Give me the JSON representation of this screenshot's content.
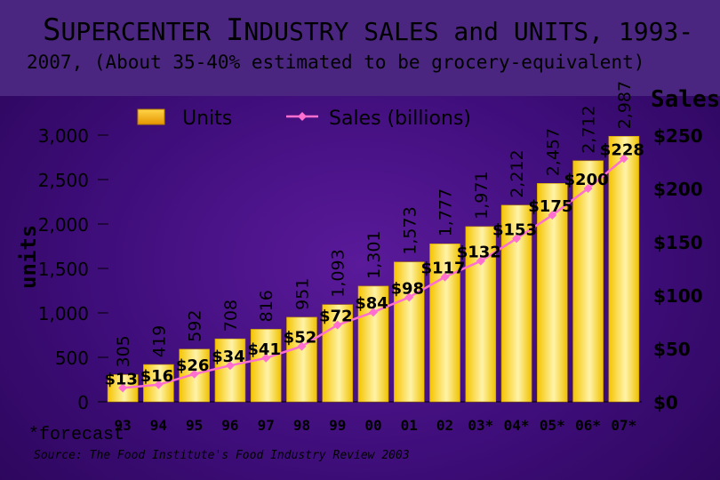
{
  "title": {
    "line1_first_initial": "S",
    "line1_first_rest": "UPERCENTER",
    "line1_second_initial": "I",
    "line1_second_rest": "NDUSTRY",
    "line1_suffix": "SALES and UNITS, 1993-",
    "line2": "2007, (About 35-40% estimated to be grocery-equivalent)"
  },
  "footnote": "*forecast",
  "source": "Source: The Food Institute's Food Industry Review 2003",
  "colors": {
    "bar": "#f5c400",
    "bar_light": "#fff3a8",
    "line": "#ff6fcf",
    "text": "#000000"
  },
  "chart_data": {
    "type": "bar+line",
    "categories": [
      "93",
      "94",
      "95",
      "96",
      "97",
      "98",
      "99",
      "00",
      "01",
      "02",
      "03*",
      "04*",
      "05*",
      "06*",
      "07*"
    ],
    "series": [
      {
        "name": "Units",
        "type": "bar",
        "axis": "left",
        "values": [
          305,
          419,
          592,
          708,
          816,
          951,
          1093,
          1301,
          1573,
          1777,
          1971,
          2212,
          2457,
          2712,
          2987
        ],
        "labels": [
          "305",
          "419",
          "592",
          "708",
          "816",
          "951",
          "1,093",
          "1,301",
          "1,573",
          "1,777",
          "1,971",
          "2,212",
          "2,457",
          "2,712",
          "2,987"
        ]
      },
      {
        "name": "Sales (billions)",
        "type": "line",
        "axis": "right",
        "values": [
          13,
          16,
          26,
          34,
          41,
          52,
          72,
          84,
          98,
          117,
          132,
          153,
          175,
          200,
          228
        ],
        "labels": [
          "$13",
          "$16",
          "$26",
          "$34",
          "$41",
          "$52",
          "$72",
          "$84",
          "$98",
          "$117",
          "$132",
          "$153",
          "$175",
          "$200",
          "$228"
        ]
      }
    ],
    "left_axis": {
      "title": "units",
      "range": [
        0,
        3000
      ],
      "ticks": [
        0,
        500,
        1000,
        1500,
        2000,
        2500,
        3000
      ],
      "tick_labels": [
        "0",
        "500",
        "1,000",
        "1,500",
        "2,000",
        "2,500",
        "3,000"
      ]
    },
    "right_axis": {
      "title": "Sales",
      "range": [
        0,
        250
      ],
      "ticks": [
        0,
        50,
        100,
        150,
        200,
        250
      ],
      "tick_labels": [
        "$0",
        "$50",
        "$100",
        "$150",
        "$200",
        "$250"
      ]
    },
    "legend": [
      "Units",
      "Sales (billions)"
    ],
    "legend_position": "top-center"
  }
}
